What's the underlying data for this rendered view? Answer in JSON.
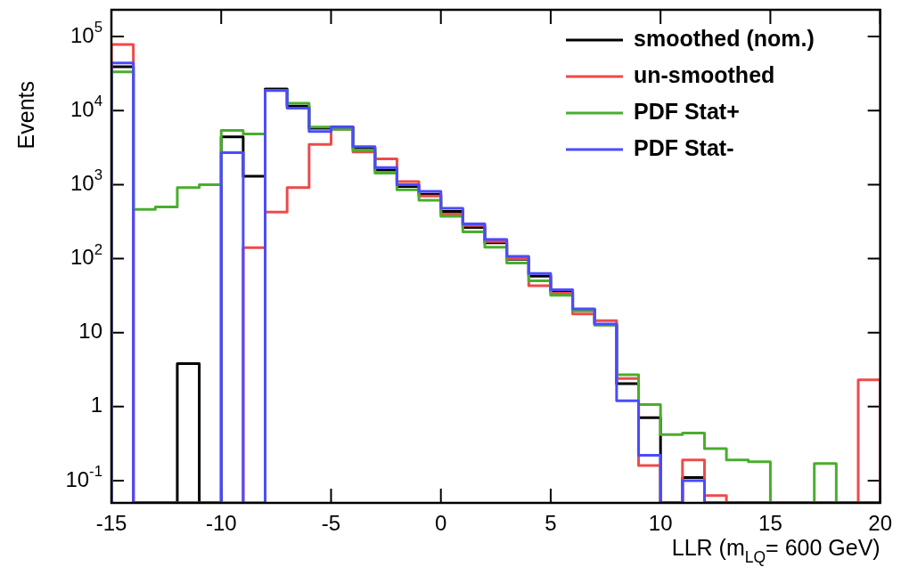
{
  "chart_data": {
    "type": "histogram",
    "xlabel": "LLR (m$_{LQ}$= 600 GeV)",
    "ylabel": "Events",
    "bins": [
      -15,
      -14,
      -13,
      -12,
      -11,
      -10,
      -9,
      -8,
      -7,
      -6,
      -5,
      -4,
      -3,
      -2,
      -1,
      0,
      1,
      2,
      3,
      4,
      5,
      6,
      7,
      8,
      9,
      10,
      11,
      12,
      13,
      14,
      15,
      16,
      17,
      18,
      19,
      20
    ],
    "series": [
      {
        "name": "smoothed (nom.)",
        "color": "#000000",
        "values": [
          39000,
          null,
          null,
          3.8,
          null,
          4400,
          1300,
          19500,
          11500,
          5800,
          6000,
          3150,
          1570,
          940,
          740,
          435,
          263,
          164,
          98,
          58,
          35.5,
          20.5,
          12.8,
          2.05,
          0.71,
          null,
          0.11,
          null,
          null,
          null,
          null,
          null,
          null,
          null,
          null
        ]
      },
      {
        "name": "un-smoothed",
        "color": "#ee4a4a",
        "values": [
          78000,
          null,
          null,
          null,
          null,
          null,
          140,
          425,
          910,
          3500,
          5600,
          2750,
          2230,
          1100,
          700,
          400,
          280,
          170,
          100,
          43,
          34,
          17.8,
          14.5,
          2.4,
          0.16,
          null,
          0.19,
          0.063,
          null,
          null,
          null,
          null,
          null,
          null,
          2.3
        ]
      },
      {
        "name": "PDF Stat+",
        "color": "#4aad2e",
        "values": [
          33400,
          462,
          500,
          910,
          1000,
          5400,
          4840,
          18800,
          12600,
          6000,
          5600,
          2900,
          1430,
          850,
          615,
          373,
          230,
          142,
          87,
          50,
          32,
          19.6,
          12.6,
          2.7,
          1.07,
          0.42,
          0.44,
          0.27,
          0.19,
          0.18,
          null,
          null,
          0.17,
          null,
          null
        ]
      },
      {
        "name": "PDF Stat-",
        "color": "#4b4bff",
        "values": [
          44000,
          null,
          null,
          null,
          null,
          2700,
          null,
          18600,
          10800,
          5200,
          6000,
          3250,
          1700,
          1000,
          810,
          480,
          295,
          182,
          107,
          63,
          38,
          21,
          13.1,
          1.2,
          0.22,
          null,
          0.1,
          null,
          null,
          null,
          null,
          null,
          null,
          null,
          null
        ]
      }
    ],
    "log": true,
    "grid": false,
    "legend": "top right",
    "xlim": [
      -15,
      20
    ],
    "xticks": [
      -15,
      -10,
      -5,
      0,
      5,
      10,
      15,
      20
    ],
    "ylim": [
      0.05,
      230000
    ],
    "yticks": [
      {
        "value": 0.1,
        "label": "10$^{-1}$"
      },
      1,
      10,
      {
        "value": 100,
        "label": "10$^{2}$"
      },
      {
        "value": 1000,
        "label": "10$^{3}$"
      },
      {
        "value": 10000,
        "label": "10$^{4}$"
      },
      {
        "value": 100000,
        "label": "10$^{5}$"
      }
    ]
  }
}
